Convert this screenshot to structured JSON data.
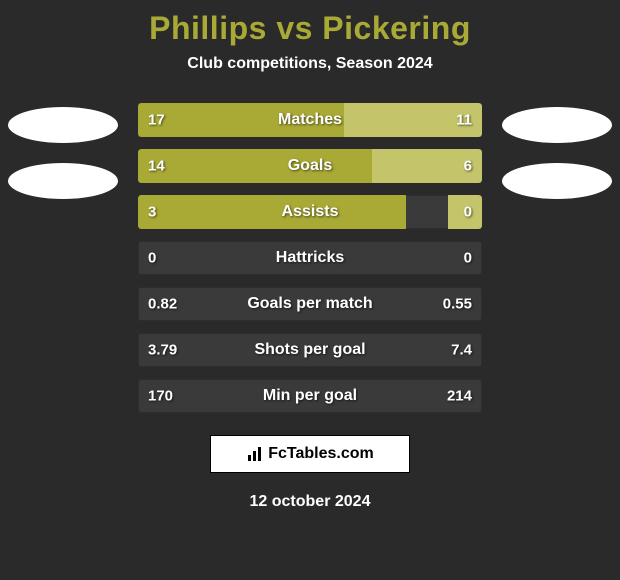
{
  "title": "Phillips vs Pickering",
  "subtitle": "Club competitions, Season 2024",
  "colors": {
    "background": "#2a2a2a",
    "title": "#a9a936",
    "text": "#ffffff",
    "bar_left": "#a9a936",
    "bar_right": "#c4c46a",
    "bar_track": "#3a3a3a",
    "ellipse": "#ffffff"
  },
  "stats": [
    {
      "label": "Matches",
      "left_val": "17",
      "right_val": "11",
      "left_pct": 60,
      "right_pct": 40
    },
    {
      "label": "Goals",
      "left_val": "14",
      "right_val": "6",
      "left_pct": 68,
      "right_pct": 32
    },
    {
      "label": "Assists",
      "left_val": "3",
      "right_val": "0",
      "left_pct": 78,
      "right_pct": 10
    },
    {
      "label": "Hattricks",
      "left_val": "0",
      "right_val": "0",
      "left_pct": 0,
      "right_pct": 0
    },
    {
      "label": "Goals per match",
      "left_val": "0.82",
      "right_val": "0.55",
      "left_pct": 0,
      "right_pct": 0
    },
    {
      "label": "Shots per goal",
      "left_val": "3.79",
      "right_val": "7.4",
      "left_pct": 0,
      "right_pct": 0
    },
    {
      "label": "Min per goal",
      "left_val": "170",
      "right_val": "214",
      "left_pct": 0,
      "right_pct": 0
    }
  ],
  "footer": {
    "logo_text": "FcTables.com",
    "date": "12 october 2024"
  }
}
